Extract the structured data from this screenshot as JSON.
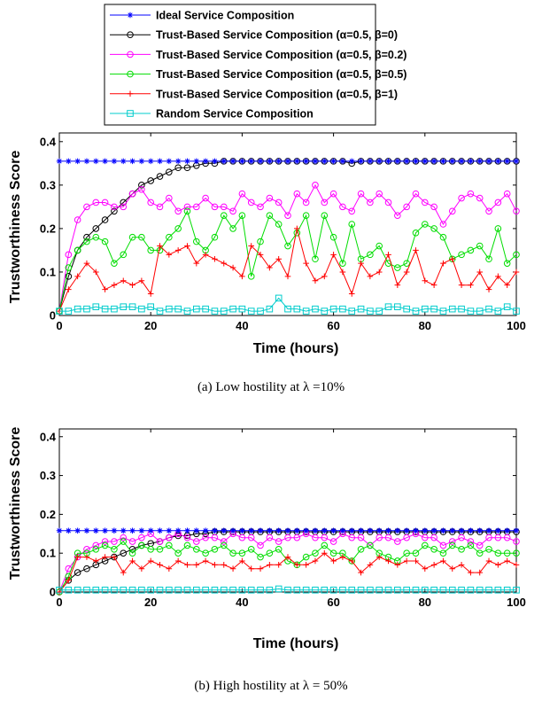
{
  "legend": [
    {
      "name": "Ideal Service Composition",
      "color": "#0000ff",
      "marker": "asterisk"
    },
    {
      "name": "Trust-Based Service Composition (α=0.5, β=0)",
      "color": "#000000",
      "marker": "circle"
    },
    {
      "name": "Trust-Based Service Composition (α=0.5, β=0.2)",
      "color": "#ff00ff",
      "marker": "circle"
    },
    {
      "name": "Trust-Based Service Composition (α=0.5, β=0.5)",
      "color": "#00dd00",
      "marker": "circle"
    },
    {
      "name": "Trust-Based Service Composition (α=0.5, β=1)",
      "color": "#ff0000",
      "marker": "plus"
    },
    {
      "name": "Random Service Composition",
      "color": "#00cccc",
      "marker": "square"
    }
  ],
  "chart_data": [
    {
      "type": "line",
      "caption": "(a) Low hostility at λ =10%",
      "xlabel": "Time (hours)",
      "ylabel": "Trustworthiness Score",
      "xlim": [
        0,
        100
      ],
      "ylim": [
        0,
        0.42
      ],
      "xticks": [
        "0",
        "20",
        "40",
        "60",
        "80",
        "100"
      ],
      "yticks": [
        "0",
        "0.1",
        "0.2",
        "0.3",
        "0.4"
      ],
      "x": [
        0,
        2,
        4,
        6,
        8,
        10,
        12,
        14,
        16,
        18,
        20,
        22,
        24,
        26,
        28,
        30,
        32,
        34,
        36,
        38,
        40,
        42,
        44,
        46,
        48,
        50,
        52,
        54,
        56,
        58,
        60,
        62,
        64,
        66,
        68,
        70,
        72,
        74,
        76,
        78,
        80,
        82,
        84,
        86,
        88,
        90,
        92,
        94,
        96,
        98,
        100
      ],
      "series": [
        {
          "name": "Ideal Service Composition",
          "values": [
            0.355,
            0.355,
            0.355,
            0.355,
            0.355,
            0.355,
            0.355,
            0.355,
            0.355,
            0.355,
            0.355,
            0.355,
            0.355,
            0.355,
            0.355,
            0.355,
            0.355,
            0.355,
            0.355,
            0.355,
            0.355,
            0.355,
            0.355,
            0.355,
            0.355,
            0.355,
            0.355,
            0.355,
            0.355,
            0.355,
            0.355,
            0.355,
            0.355,
            0.355,
            0.355,
            0.355,
            0.355,
            0.355,
            0.355,
            0.355,
            0.355,
            0.355,
            0.355,
            0.355,
            0.355,
            0.355,
            0.355,
            0.355,
            0.355,
            0.355,
            0.355
          ]
        },
        {
          "name": "Trust-Based Service Composition (α=0.5, β=0)",
          "values": [
            0.01,
            0.09,
            0.15,
            0.18,
            0.2,
            0.22,
            0.24,
            0.26,
            0.28,
            0.3,
            0.31,
            0.32,
            0.33,
            0.34,
            0.34,
            0.345,
            0.35,
            0.35,
            0.355,
            0.355,
            0.355,
            0.355,
            0.355,
            0.355,
            0.355,
            0.355,
            0.355,
            0.355,
            0.355,
            0.355,
            0.355,
            0.355,
            0.35,
            0.355,
            0.355,
            0.355,
            0.355,
            0.355,
            0.355,
            0.355,
            0.355,
            0.355,
            0.355,
            0.355,
            0.355,
            0.355,
            0.355,
            0.355,
            0.355,
            0.355,
            0.355
          ]
        },
        {
          "name": "Trust-Based Service Composition (α=0.5, β=0.2)",
          "values": [
            0.01,
            0.14,
            0.22,
            0.25,
            0.26,
            0.26,
            0.25,
            0.25,
            0.28,
            0.29,
            0.26,
            0.25,
            0.27,
            0.24,
            0.25,
            0.25,
            0.27,
            0.25,
            0.25,
            0.24,
            0.28,
            0.26,
            0.25,
            0.27,
            0.26,
            0.23,
            0.28,
            0.26,
            0.3,
            0.26,
            0.28,
            0.25,
            0.24,
            0.28,
            0.26,
            0.28,
            0.26,
            0.23,
            0.25,
            0.28,
            0.26,
            0.25,
            0.21,
            0.24,
            0.27,
            0.28,
            0.27,
            0.24,
            0.26,
            0.28,
            0.24
          ]
        },
        {
          "name": "Trust-Based Service Composition (α=0.5, β=0.5)",
          "values": [
            0.01,
            0.11,
            0.15,
            0.17,
            0.18,
            0.17,
            0.12,
            0.14,
            0.18,
            0.18,
            0.15,
            0.15,
            0.18,
            0.2,
            0.24,
            0.17,
            0.15,
            0.18,
            0.23,
            0.2,
            0.23,
            0.09,
            0.17,
            0.23,
            0.21,
            0.16,
            0.19,
            0.23,
            0.13,
            0.23,
            0.18,
            0.12,
            0.21,
            0.13,
            0.14,
            0.16,
            0.12,
            0.11,
            0.12,
            0.19,
            0.21,
            0.2,
            0.18,
            0.13,
            0.14,
            0.15,
            0.16,
            0.13,
            0.2,
            0.12,
            0.14
          ]
        },
        {
          "name": "Trust-Based Service Composition (α=0.5, β=1)",
          "values": [
            0.01,
            0.06,
            0.09,
            0.12,
            0.1,
            0.06,
            0.07,
            0.08,
            0.07,
            0.08,
            0.05,
            0.16,
            0.14,
            0.15,
            0.16,
            0.12,
            0.14,
            0.13,
            0.12,
            0.11,
            0.09,
            0.16,
            0.14,
            0.11,
            0.13,
            0.09,
            0.2,
            0.12,
            0.08,
            0.09,
            0.14,
            0.1,
            0.05,
            0.12,
            0.09,
            0.1,
            0.14,
            0.07,
            0.1,
            0.15,
            0.08,
            0.07,
            0.12,
            0.13,
            0.07,
            0.07,
            0.1,
            0.06,
            0.09,
            0.07,
            0.1
          ]
        },
        {
          "name": "Random Service Composition",
          "values": [
            0.01,
            0.01,
            0.015,
            0.015,
            0.02,
            0.015,
            0.015,
            0.02,
            0.02,
            0.015,
            0.02,
            0.01,
            0.015,
            0.015,
            0.01,
            0.015,
            0.015,
            0.01,
            0.01,
            0.015,
            0.015,
            0.01,
            0.01,
            0.015,
            0.04,
            0.015,
            0.015,
            0.01,
            0.015,
            0.01,
            0.015,
            0.015,
            0.01,
            0.015,
            0.01,
            0.01,
            0.02,
            0.02,
            0.015,
            0.01,
            0.015,
            0.015,
            0.01,
            0.015,
            0.015,
            0.01,
            0.01,
            0.015,
            0.01,
            0.02,
            0.01
          ]
        }
      ]
    },
    {
      "type": "line",
      "caption": "(b) High hostility at λ = 50%",
      "xlabel": "Time (hours)",
      "ylabel": "Trustworthiness Score",
      "xlim": [
        0,
        100
      ],
      "ylim": [
        0,
        0.42
      ],
      "xticks": [
        "0",
        "20",
        "40",
        "60",
        "80",
        "100"
      ],
      "yticks": [
        "0",
        "0.1",
        "0.2",
        "0.3",
        "0.4"
      ],
      "x": [
        0,
        2,
        4,
        6,
        8,
        10,
        12,
        14,
        16,
        18,
        20,
        22,
        24,
        26,
        28,
        30,
        32,
        34,
        36,
        38,
        40,
        42,
        44,
        46,
        48,
        50,
        52,
        54,
        56,
        58,
        60,
        62,
        64,
        66,
        68,
        70,
        72,
        74,
        76,
        78,
        80,
        82,
        84,
        86,
        88,
        90,
        92,
        94,
        96,
        98,
        100
      ],
      "series": [
        {
          "name": "Ideal Service Composition",
          "values": [
            0.158,
            0.158,
            0.158,
            0.158,
            0.158,
            0.158,
            0.158,
            0.158,
            0.158,
            0.158,
            0.158,
            0.158,
            0.158,
            0.158,
            0.158,
            0.158,
            0.158,
            0.158,
            0.158,
            0.158,
            0.158,
            0.158,
            0.158,
            0.158,
            0.158,
            0.158,
            0.158,
            0.158,
            0.158,
            0.158,
            0.158,
            0.158,
            0.158,
            0.158,
            0.158,
            0.158,
            0.158,
            0.158,
            0.158,
            0.158,
            0.158,
            0.158,
            0.158,
            0.158,
            0.158,
            0.158,
            0.158,
            0.158,
            0.158,
            0.158,
            0.158
          ]
        },
        {
          "name": "Trust-Based Service Composition (α=0.5, β=0)",
          "values": [
            0.0,
            0.03,
            0.05,
            0.06,
            0.07,
            0.08,
            0.09,
            0.1,
            0.11,
            0.12,
            0.125,
            0.13,
            0.14,
            0.145,
            0.145,
            0.15,
            0.15,
            0.155,
            0.155,
            0.155,
            0.155,
            0.155,
            0.155,
            0.155,
            0.155,
            0.155,
            0.155,
            0.155,
            0.155,
            0.155,
            0.155,
            0.155,
            0.155,
            0.155,
            0.155,
            0.155,
            0.155,
            0.155,
            0.155,
            0.155,
            0.155,
            0.155,
            0.155,
            0.155,
            0.155,
            0.155,
            0.155,
            0.155,
            0.155,
            0.155,
            0.155
          ]
        },
        {
          "name": "Trust-Based Service Composition (α=0.5, β=0.2)",
          "values": [
            0.0,
            0.06,
            0.09,
            0.11,
            0.12,
            0.13,
            0.13,
            0.14,
            0.13,
            0.14,
            0.15,
            0.13,
            0.14,
            0.15,
            0.14,
            0.13,
            0.14,
            0.14,
            0.13,
            0.15,
            0.14,
            0.14,
            0.12,
            0.14,
            0.13,
            0.14,
            0.14,
            0.15,
            0.14,
            0.14,
            0.13,
            0.15,
            0.14,
            0.14,
            0.12,
            0.14,
            0.14,
            0.13,
            0.14,
            0.15,
            0.14,
            0.14,
            0.12,
            0.13,
            0.14,
            0.13,
            0.12,
            0.14,
            0.14,
            0.14,
            0.13
          ]
        },
        {
          "name": "Trust-Based Service Composition (α=0.5, β=0.5)",
          "values": [
            0.0,
            0.04,
            0.1,
            0.1,
            0.11,
            0.12,
            0.11,
            0.13,
            0.1,
            0.12,
            0.11,
            0.11,
            0.12,
            0.1,
            0.12,
            0.11,
            0.1,
            0.11,
            0.12,
            0.1,
            0.1,
            0.11,
            0.09,
            0.1,
            0.11,
            0.08,
            0.07,
            0.09,
            0.1,
            0.12,
            0.1,
            0.1,
            0.08,
            0.11,
            0.12,
            0.1,
            0.09,
            0.08,
            0.1,
            0.1,
            0.12,
            0.11,
            0.1,
            0.12,
            0.11,
            0.12,
            0.1,
            0.11,
            0.1,
            0.1,
            0.1
          ]
        },
        {
          "name": "Trust-Based Service Composition (α=0.5, β=1)",
          "values": [
            0.0,
            0.03,
            0.09,
            0.09,
            0.08,
            0.09,
            0.09,
            0.05,
            0.08,
            0.06,
            0.08,
            0.07,
            0.06,
            0.08,
            0.07,
            0.07,
            0.08,
            0.07,
            0.07,
            0.06,
            0.08,
            0.06,
            0.06,
            0.07,
            0.07,
            0.09,
            0.07,
            0.07,
            0.08,
            0.1,
            0.08,
            0.09,
            0.08,
            0.05,
            0.07,
            0.09,
            0.08,
            0.07,
            0.08,
            0.08,
            0.06,
            0.07,
            0.08,
            0.06,
            0.07,
            0.05,
            0.05,
            0.08,
            0.07,
            0.08,
            0.07
          ]
        },
        {
          "name": "Random Service Composition",
          "values": [
            0.005,
            0.005,
            0.005,
            0.005,
            0.005,
            0.005,
            0.005,
            0.005,
            0.005,
            0.005,
            0.005,
            0.005,
            0.005,
            0.005,
            0.005,
            0.005,
            0.005,
            0.005,
            0.005,
            0.005,
            0.005,
            0.005,
            0.005,
            0.005,
            0.008,
            0.005,
            0.005,
            0.005,
            0.005,
            0.005,
            0.005,
            0.005,
            0.005,
            0.005,
            0.005,
            0.005,
            0.005,
            0.005,
            0.005,
            0.005,
            0.005,
            0.005,
            0.005,
            0.005,
            0.005,
            0.005,
            0.005,
            0.005,
            0.005,
            0.005,
            0.005
          ]
        }
      ]
    }
  ]
}
